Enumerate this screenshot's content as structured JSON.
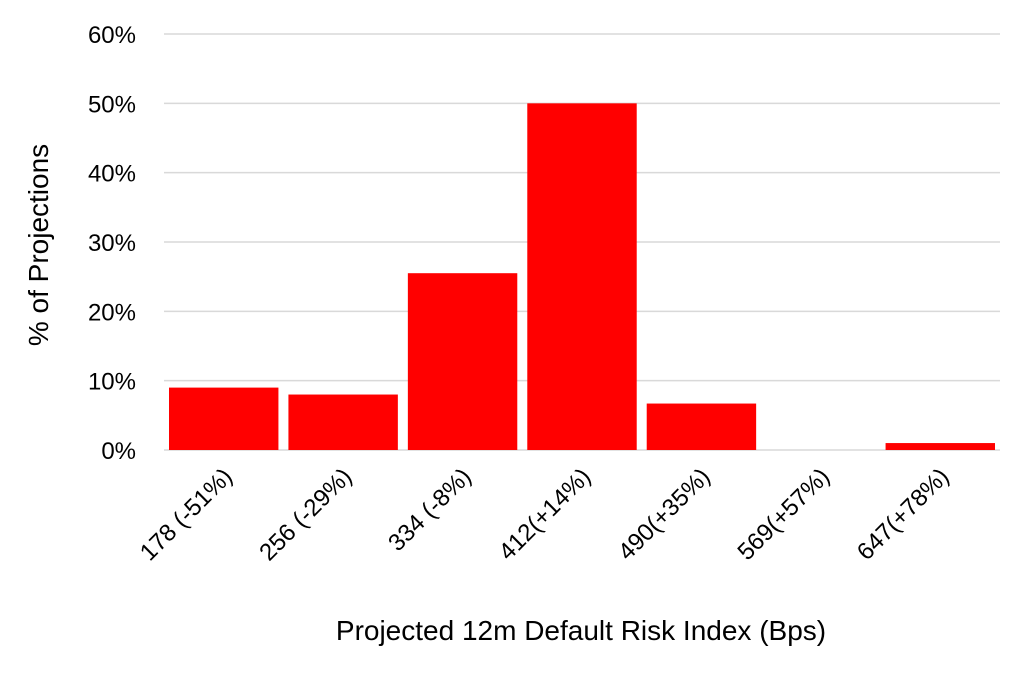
{
  "colors": {
    "bar": "#ff0000",
    "grid": "#d9d9d9",
    "axis_text": "#000000"
  },
  "chart_data": {
    "type": "bar",
    "title": "",
    "xlabel": "Projected 12m Default Risk Index (Bps)",
    "ylabel": "% of Projections",
    "categories": [
      "178 (-51%)",
      "256 (-29%)",
      "334 (-8%)",
      "412(+14%)",
      "490(+35%)",
      "569(+57%)",
      "647(+78%)"
    ],
    "values": [
      9,
      8,
      25.5,
      50,
      6.7,
      0,
      1
    ],
    "ylim": [
      0,
      60
    ],
    "yticks": [
      0,
      10,
      20,
      30,
      40,
      50,
      60
    ],
    "ytick_labels": [
      "0%",
      "10%",
      "20%",
      "30%",
      "40%",
      "50%",
      "60%"
    ],
    "grid": true,
    "legend": "none"
  }
}
